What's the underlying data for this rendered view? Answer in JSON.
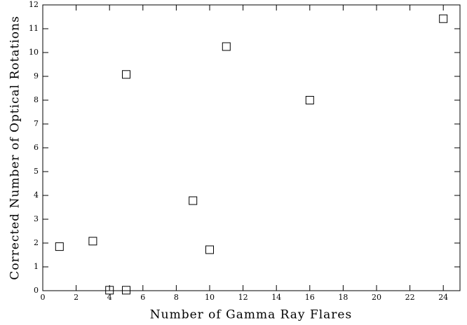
{
  "chart_data": {
    "type": "scatter",
    "x_label": "Number of Gamma Ray Flares",
    "y_label": "Corrected Number of Optical Rotations",
    "series": [
      {
        "x": [
          1,
          3,
          4,
          5,
          5,
          9,
          10,
          11,
          16,
          24
        ],
        "values": [
          1.85,
          2.08,
          0.02,
          0.02,
          9.08,
          3.78,
          1.72,
          10.25,
          8.0,
          11.42
        ],
        "color": "#000000"
      }
    ],
    "xlim": [
      0,
      25
    ],
    "xticks": [
      0,
      2,
      4,
      6,
      8,
      10,
      12,
      14,
      16,
      18,
      20,
      22,
      24
    ],
    "ylim": [
      0,
      12
    ],
    "yticks": [
      0,
      1,
      2,
      3,
      4,
      5,
      6,
      7,
      8,
      9,
      10,
      11,
      12
    ],
    "grid": false
  }
}
